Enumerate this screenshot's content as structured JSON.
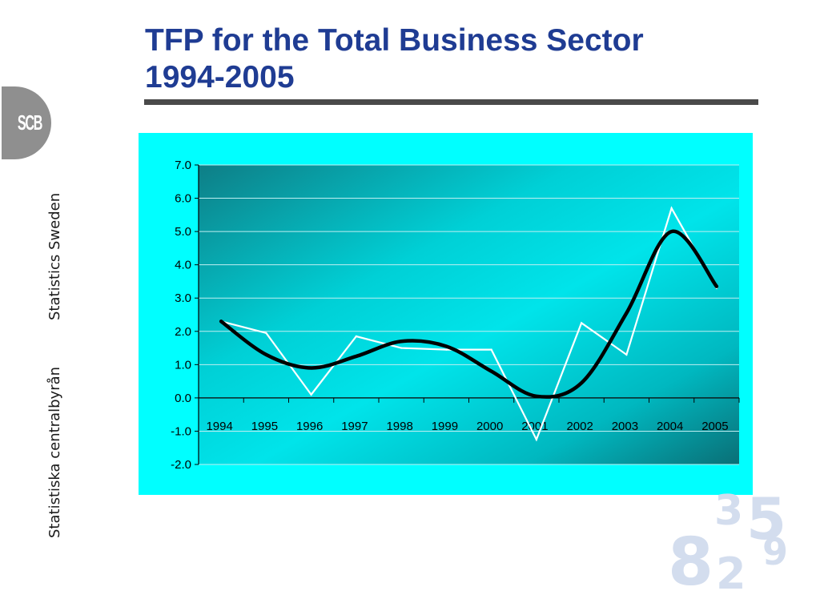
{
  "slide": {
    "title_line1": "TFP for the Total Business Sector",
    "title_line2": "1994-2005"
  },
  "branding": {
    "logo_text": "SCB",
    "org_name_en": "Statistics Sweden",
    "org_name_sv": "Statistiska centralbyrån",
    "deco_digits": [
      "8",
      "3",
      "5",
      "2",
      "9"
    ]
  },
  "colors": {
    "title": "#1f3c93",
    "panel": "#00ffff",
    "actual_line": "#ffffff",
    "trend_line": "#000000",
    "deco": "#d3ddee"
  },
  "chart_data": {
    "type": "line",
    "categories": [
      "1994",
      "1995",
      "1996",
      "1997",
      "1998",
      "1999",
      "2000",
      "2001",
      "2002",
      "2003",
      "2004",
      "2005"
    ],
    "series": [
      {
        "values": [
          2.3,
          1.95,
          0.1,
          1.85,
          1.5,
          1.45,
          1.45,
          -1.25,
          2.25,
          1.3,
          5.7,
          3.3
        ]
      },
      {
        "values": [
          2.3,
          1.3,
          0.9,
          1.25,
          1.7,
          1.55,
          0.8,
          0.05,
          0.45,
          2.55,
          5.0,
          3.35
        ]
      }
    ],
    "ylim": [
      -2.0,
      7.0
    ],
    "yticks": [
      "7.0",
      "6.0",
      "5.0",
      "4.0",
      "3.0",
      "2.0",
      "1.0",
      "0.0",
      "-1.0",
      "-2.0"
    ],
    "grid": true,
    "legend": "none"
  }
}
